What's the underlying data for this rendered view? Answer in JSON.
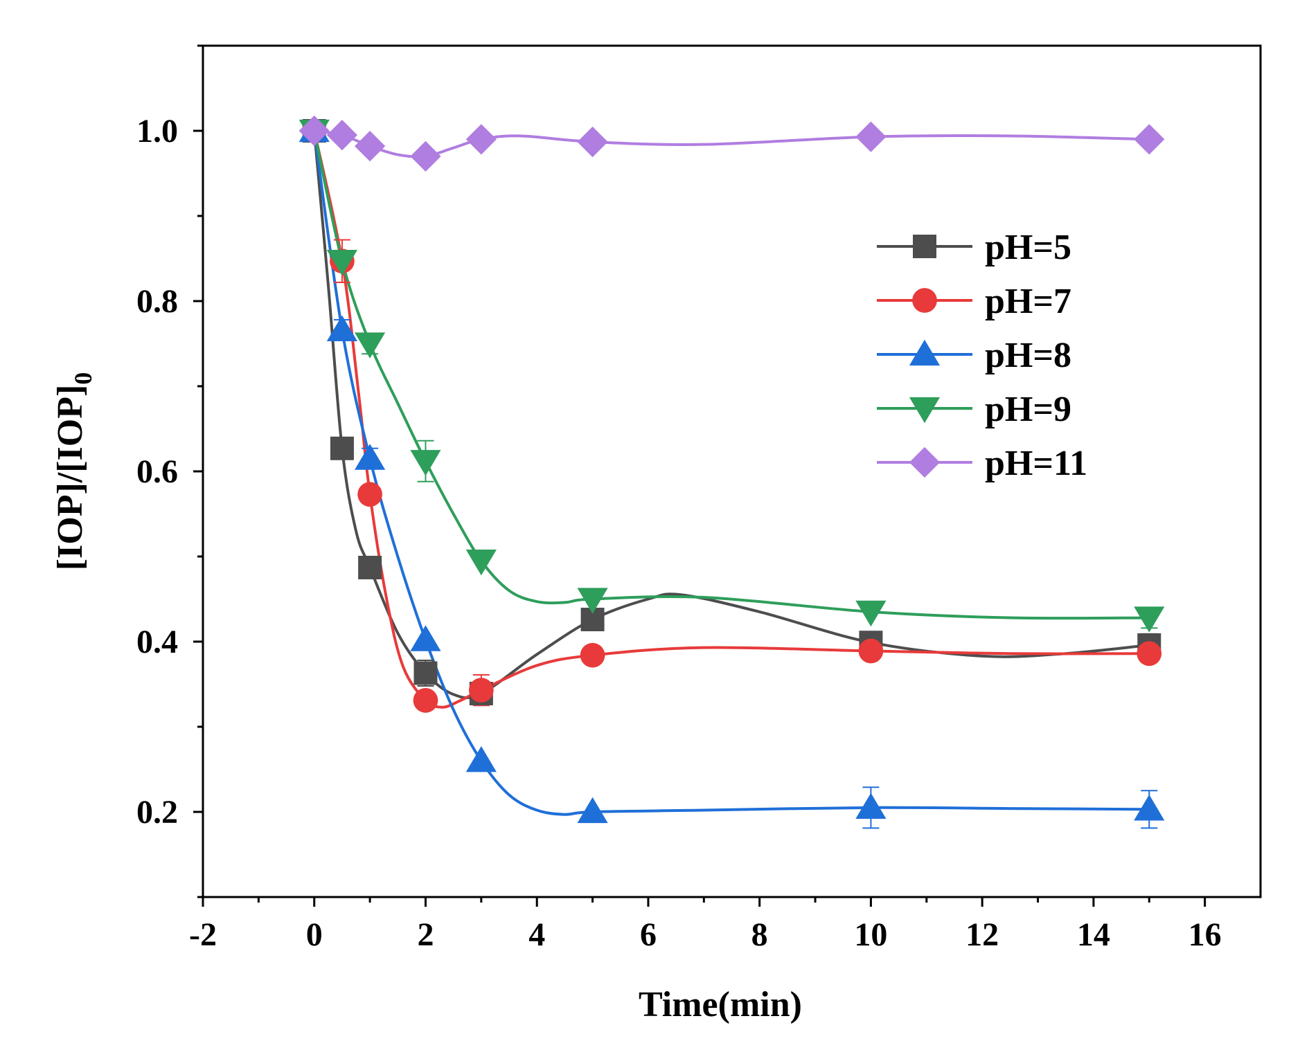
{
  "chart_data": {
    "type": "line",
    "title": "",
    "xlabel": "Time(min)",
    "ylabel_main": "[IOP]/[IOP]",
    "ylabel_sub": "0",
    "xlim": [
      -2,
      17
    ],
    "ylim": [
      0.1,
      1.1
    ],
    "xticks": [
      -2,
      0,
      2,
      4,
      6,
      8,
      10,
      12,
      14,
      16
    ],
    "xtick_labels": [
      "-2",
      "0",
      "2",
      "4",
      "6",
      "8",
      "10",
      "12",
      "14",
      "16"
    ],
    "yticks": [
      0.2,
      0.4,
      0.6,
      0.8,
      1.0
    ],
    "ytick_labels": [
      "0.2",
      "0.4",
      "0.6",
      "0.8",
      "1.0"
    ],
    "grid": false,
    "legend_position": "upper-right",
    "x": [
      0,
      0.5,
      1,
      2,
      3,
      5,
      10,
      15
    ],
    "series": [
      {
        "name": "pH=5",
        "color": "#4d4d4d",
        "marker": "square",
        "values": [
          1.0,
          0.627,
          0.487,
          0.363,
          0.339,
          0.426,
          0.399,
          0.396
        ],
        "errors": [
          0,
          0,
          0,
          0.015,
          0.01,
          0.01,
          0,
          0.013
        ],
        "curve": [
          [
            0,
            1.0
          ],
          [
            0.25,
            0.82
          ],
          [
            0.5,
            0.627
          ],
          [
            0.75,
            0.53
          ],
          [
            1,
            0.487
          ],
          [
            1.5,
            0.41
          ],
          [
            2,
            0.363
          ],
          [
            2.5,
            0.338
          ],
          [
            3,
            0.339
          ],
          [
            4,
            0.385
          ],
          [
            5,
            0.426
          ],
          [
            6,
            0.45
          ],
          [
            6.6,
            0.455
          ],
          [
            8,
            0.435
          ],
          [
            10,
            0.399
          ],
          [
            12,
            0.383
          ],
          [
            13.5,
            0.386
          ],
          [
            15,
            0.396
          ]
        ]
      },
      {
        "name": "pH=7",
        "color": "#e83a3a",
        "marker": "circle",
        "values": [
          1.0,
          0.847,
          0.573,
          0.331,
          0.343,
          0.384,
          0.389,
          0.386
        ],
        "errors": [
          0,
          0.025,
          0,
          0,
          0.018,
          0,
          0,
          0
        ],
        "curve": [
          [
            0,
            1.0
          ],
          [
            0.5,
            0.847
          ],
          [
            0.8,
            0.69
          ],
          [
            1,
            0.573
          ],
          [
            1.3,
            0.45
          ],
          [
            1.6,
            0.37
          ],
          [
            2,
            0.331
          ],
          [
            2.3,
            0.323
          ],
          [
            2.6,
            0.33
          ],
          [
            3,
            0.343
          ],
          [
            4,
            0.372
          ],
          [
            5,
            0.384
          ],
          [
            7,
            0.393
          ],
          [
            10,
            0.389
          ],
          [
            12.5,
            0.386
          ],
          [
            15,
            0.386
          ]
        ]
      },
      {
        "name": "pH=8",
        "color": "#1f6fd8",
        "marker": "triangle-up",
        "values": [
          1.0,
          0.766,
          0.615,
          0.402,
          0.26,
          0.2,
          0.205,
          0.203
        ],
        "errors": [
          0,
          0.012,
          0.012,
          0,
          0,
          0,
          0.024,
          0.022
        ],
        "curve": [
          [
            0,
            1.0
          ],
          [
            0.5,
            0.766
          ],
          [
            1,
            0.615
          ],
          [
            1.5,
            0.5
          ],
          [
            2,
            0.402
          ],
          [
            2.5,
            0.32
          ],
          [
            3,
            0.26
          ],
          [
            3.5,
            0.22
          ],
          [
            4,
            0.202
          ],
          [
            4.5,
            0.197
          ],
          [
            5,
            0.2
          ],
          [
            7,
            0.202
          ],
          [
            10,
            0.205
          ],
          [
            12.5,
            0.204
          ],
          [
            15,
            0.203
          ]
        ]
      },
      {
        "name": "pH=9",
        "color": "#2e9e5b",
        "marker": "triangle-down",
        "values": [
          1.0,
          0.847,
          0.75,
          0.612,
          0.495,
          0.45,
          0.435,
          0.428
        ],
        "errors": [
          0,
          0,
          0.012,
          0.024,
          0,
          0,
          0,
          0.012
        ],
        "curve": [
          [
            0,
            1.0
          ],
          [
            0.5,
            0.847
          ],
          [
            1,
            0.75
          ],
          [
            1.5,
            0.68
          ],
          [
            2,
            0.612
          ],
          [
            2.5,
            0.55
          ],
          [
            3,
            0.495
          ],
          [
            3.5,
            0.46
          ],
          [
            4,
            0.447
          ],
          [
            4.5,
            0.446
          ],
          [
            5,
            0.45
          ],
          [
            7,
            0.452
          ],
          [
            10,
            0.435
          ],
          [
            12.5,
            0.428
          ],
          [
            15,
            0.428
          ]
        ]
      },
      {
        "name": "pH=11",
        "color": "#b07de0",
        "marker": "diamond",
        "values": [
          1.0,
          0.995,
          0.982,
          0.97,
          0.99,
          0.987,
          0.993,
          0.99
        ],
        "errors": [
          0,
          0,
          0,
          0,
          0,
          0,
          0,
          0
        ],
        "curve": [
          [
            0,
            1.0
          ],
          [
            0.5,
            0.995
          ],
          [
            1,
            0.982
          ],
          [
            1.5,
            0.972
          ],
          [
            2,
            0.97
          ],
          [
            2.5,
            0.98
          ],
          [
            3,
            0.99
          ],
          [
            3.7,
            0.994
          ],
          [
            5,
            0.987
          ],
          [
            7,
            0.984
          ],
          [
            10,
            0.993
          ],
          [
            12.5,
            0.994
          ],
          [
            15,
            0.99
          ]
        ]
      }
    ]
  }
}
